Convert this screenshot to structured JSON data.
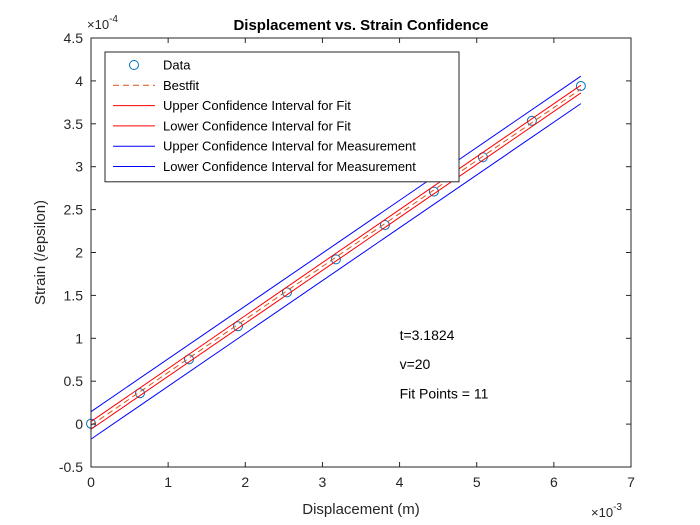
{
  "chart_data": {
    "type": "line",
    "title": "Displacement vs. Strain Confidence",
    "xlabel": "Displacement (m)",
    "ylabel": "Strain (/epsilon)",
    "xlim": [
      0,
      0.007
    ],
    "ylim": [
      -5e-05,
      0.00045
    ],
    "xticks": [
      0,
      0.001,
      0.002,
      0.003,
      0.004,
      0.005,
      0.006,
      0.007
    ],
    "yticks": [
      -5e-05,
      0,
      5e-05,
      0.0001,
      0.00015,
      0.0002,
      0.00025,
      0.0003,
      0.00035,
      0.0004,
      0.00045
    ],
    "xtick_labels": [
      "0",
      "1",
      "2",
      "3",
      "4",
      "5",
      "6",
      "7"
    ],
    "ytick_labels": [
      "-0.5",
      "0",
      "0.5",
      "1",
      "1.5",
      "2",
      "2.5",
      "3",
      "3.5",
      "4",
      "4.5"
    ],
    "x_exponent": {
      "base": "×10",
      "power": "-3"
    },
    "y_exponent": {
      "base": "×10",
      "power": "-4"
    },
    "grid": false,
    "legend_position": "top-left",
    "series": [
      {
        "name": "Data",
        "kind": "scatter",
        "color": "#0072BD",
        "x": [
          0,
          0.000635,
          0.00127,
          0.001905,
          0.00254,
          0.003175,
          0.00381,
          0.004445,
          0.00508,
          0.005715,
          0.00635
        ],
        "y": [
          5e-07,
          3.6e-05,
          7.55e-05,
          0.000114,
          0.0001535,
          0.000192,
          0.000232,
          0.000271,
          0.000311,
          0.0003535,
          0.000394
        ]
      },
      {
        "name": "Bestfit",
        "kind": "dashed-line",
        "color": "#D95319",
        "x": [
          0,
          0.00635
        ],
        "y": [
          -1.5e-06,
          0.0003905
        ]
      },
      {
        "name": "Upper Confidence Interval for Fit",
        "kind": "line",
        "color": "#FF0000",
        "x": [
          0,
          0.00635
        ],
        "y": [
          3e-06,
          0.000395
        ]
      },
      {
        "name": "Lower Confidence Interval for Fit",
        "kind": "line",
        "color": "#FF0000",
        "x": [
          0,
          0.00635
        ],
        "y": [
          -6e-06,
          0.000386
        ]
      },
      {
        "name": "Upper Confidence Interval for Measurement",
        "kind": "line",
        "color": "#0000FF",
        "x": [
          0,
          0.00635
        ],
        "y": [
          1.45e-05,
          0.0004055
        ]
      },
      {
        "name": "Lower Confidence Interval for Measurement",
        "kind": "line",
        "color": "#0000FF",
        "x": [
          0,
          0.00635
        ],
        "y": [
          -1.75e-05,
          0.0003735
        ]
      }
    ],
    "annotations": [
      {
        "text": "t=3.1824",
        "x": 0.004,
        "y": 9.8e-05
      },
      {
        "text": "v=20",
        "x": 0.004,
        "y": 6.4e-05
      },
      {
        "text": "Fit Points = 11",
        "x": 0.004,
        "y": 3e-05
      }
    ]
  }
}
